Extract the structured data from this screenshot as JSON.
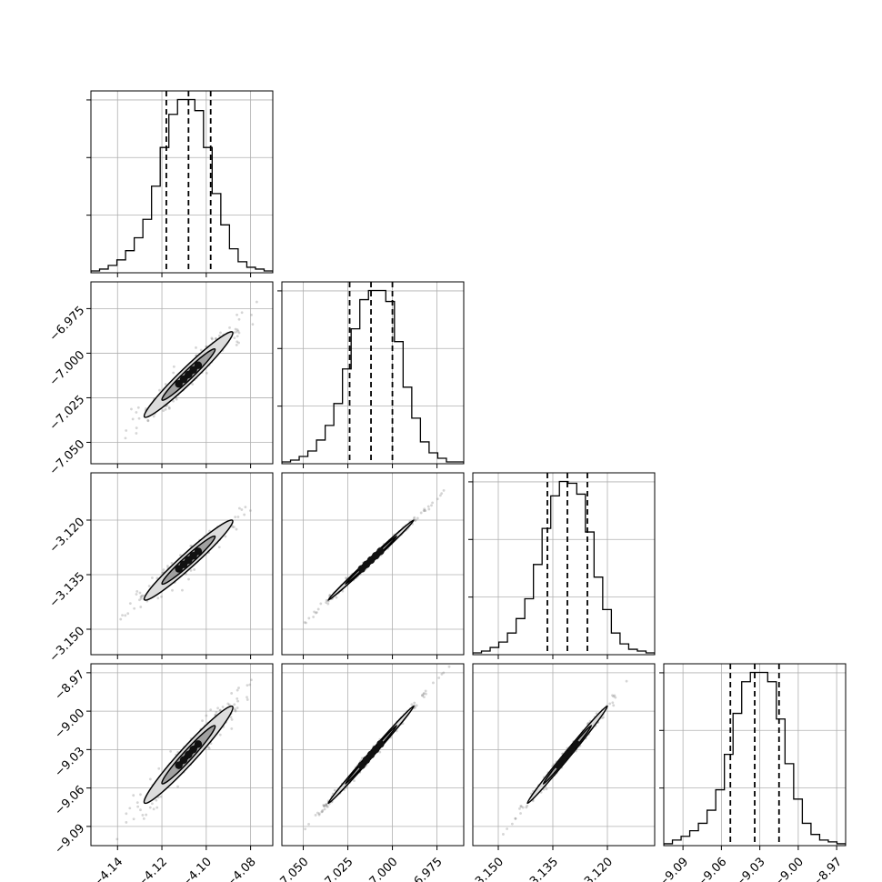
{
  "chart_data": {
    "type": "corner",
    "parameters": [
      {
        "ticks": [
          -4.14,
          -4.12,
          -4.1,
          -4.08
        ],
        "tick_labels": [
          "−4.14",
          "−4.12",
          "−4.10",
          "−4.08"
        ],
        "range": [
          -4.152,
          -4.07
        ],
        "mean": -4.108,
        "std": 0.01,
        "quantiles": [
          -4.118,
          -4.108,
          -4.098
        ],
        "hist": [
          1,
          2,
          4,
          7,
          12,
          19,
          29,
          47,
          68,
          86,
          94,
          94,
          88,
          68,
          43,
          26,
          13,
          6,
          3,
          2,
          1
        ]
      },
      {
        "ticks": [
          -7.05,
          -7.025,
          -7.0,
          -6.975
        ],
        "tick_labels": [
          "−7.050",
          "−7.025",
          "−7.000",
          "−6.975"
        ],
        "range": [
          -7.062,
          -6.96
        ],
        "mean": -7.012,
        "std": 0.012,
        "quantiles": [
          -7.024,
          -7.012,
          -7.0
        ],
        "hist": [
          1,
          2,
          4,
          7,
          13,
          21,
          33,
          52,
          74,
          90,
          95,
          95,
          89,
          67,
          42,
          25,
          12,
          6,
          3,
          1,
          1
        ]
      },
      {
        "ticks": [
          -3.15,
          -3.135,
          -3.12
        ],
        "tick_labels": [
          "−3.150",
          "−3.135",
          "−3.120"
        ],
        "range": [
          -3.157,
          -3.107
        ],
        "mean": -3.131,
        "std": 0.0055,
        "quantiles": [
          -3.1365,
          -3.131,
          -3.1255
        ],
        "hist": [
          1,
          2,
          4,
          7,
          12,
          20,
          31,
          50,
          70,
          88,
          96,
          95,
          89,
          68,
          43,
          25,
          12,
          6,
          3,
          2,
          1
        ]
      },
      {
        "ticks": [
          -9.09,
          -9.06,
          -9.03,
          -9.0,
          -8.97
        ],
        "tick_labels": [
          "−9.09",
          "−9.06",
          "−9.03",
          "−9.00",
          "−8.97"
        ],
        "range": [
          -9.105,
          -8.963
        ],
        "mean": -9.034,
        "std": 0.019,
        "quantiles": [
          -9.053,
          -9.034,
          -9.015
        ],
        "hist": [
          1,
          3,
          5,
          8,
          12,
          19,
          30,
          49,
          71,
          88,
          93,
          93,
          88,
          68,
          44,
          25,
          12,
          6,
          3,
          2,
          1
        ]
      }
    ],
    "correlations": {
      "1-0": 0.97,
      "2-0": 0.97,
      "2-1": 0.997,
      "3-0": 0.97,
      "3-1": 0.997,
      "3-2": 0.995
    },
    "grid": true,
    "colors": {
      "line": "#000000",
      "grid": "#b0b0b0",
      "scatter": "#888888",
      "contour_fill": [
        "#dcdcdc",
        "#a0a0a0",
        "#4a4a4a"
      ]
    }
  }
}
